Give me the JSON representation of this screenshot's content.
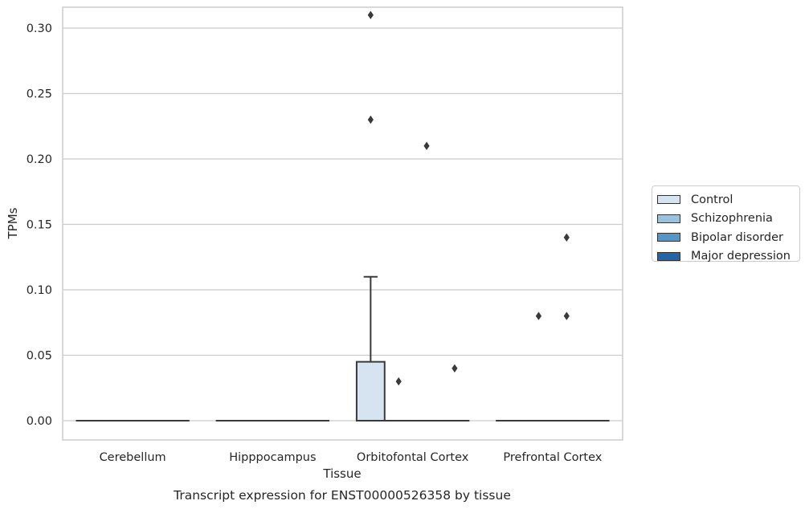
{
  "chart_data": {
    "type": "box",
    "xlabel": "Tissue",
    "ylabel": "TPMs",
    "caption": "Transcript expression for ENST00000526358 by tissue",
    "ylim": [
      -0.015,
      0.325
    ],
    "yticks": [
      "0.00",
      "0.05",
      "0.10",
      "0.15",
      "0.20",
      "0.25",
      "0.30"
    ],
    "grid": true,
    "legend_position": "outside-right",
    "categories": [
      "Cerebellum",
      "Hipppocampus",
      "Orbitofontal Cortex",
      "Prefrontal Cortex"
    ],
    "series": [
      {
        "name": "Control",
        "color": "#d6e4f2",
        "boxes": [
          {
            "q1": 0,
            "median": 0,
            "q3": 0,
            "whisker_low": 0,
            "whisker_high": 0,
            "outliers": []
          },
          {
            "q1": 0,
            "median": 0,
            "q3": 0,
            "whisker_low": 0,
            "whisker_high": 0,
            "outliers": []
          },
          {
            "q1": 0,
            "median": 0,
            "q3": 0.045,
            "whisker_low": 0,
            "whisker_high": 0.11,
            "outliers": [
              0.23,
              0.31
            ]
          },
          {
            "q1": 0,
            "median": 0,
            "q3": 0,
            "whisker_low": 0,
            "whisker_high": 0,
            "outliers": []
          }
        ]
      },
      {
        "name": "Schizophrenia",
        "color": "#9ac2dc",
        "boxes": [
          {
            "q1": 0,
            "median": 0,
            "q3": 0,
            "whisker_low": 0,
            "whisker_high": 0,
            "outliers": []
          },
          {
            "q1": 0,
            "median": 0,
            "q3": 0,
            "whisker_low": 0,
            "whisker_high": 0,
            "outliers": []
          },
          {
            "q1": 0,
            "median": 0,
            "q3": 0,
            "whisker_low": 0,
            "whisker_high": 0,
            "outliers": [
              0.03
            ]
          },
          {
            "q1": 0,
            "median": 0,
            "q3": 0,
            "whisker_low": 0,
            "whisker_high": 0,
            "outliers": [
              0.08
            ]
          }
        ]
      },
      {
        "name": "Bipolar disorder",
        "color": "#5596c6",
        "boxes": [
          {
            "q1": 0,
            "median": 0,
            "q3": 0,
            "whisker_low": 0,
            "whisker_high": 0,
            "outliers": []
          },
          {
            "q1": 0,
            "median": 0,
            "q3": 0,
            "whisker_low": 0,
            "whisker_high": 0,
            "outliers": []
          },
          {
            "q1": 0,
            "median": 0,
            "q3": 0,
            "whisker_low": 0,
            "whisker_high": 0,
            "outliers": [
              0.21
            ]
          },
          {
            "q1": 0,
            "median": 0,
            "q3": 0,
            "whisker_low": 0,
            "whisker_high": 0,
            "outliers": [
              0.08,
              0.14
            ]
          }
        ]
      },
      {
        "name": "Major depression",
        "color": "#2565a6",
        "boxes": [
          {
            "q1": 0,
            "median": 0,
            "q3": 0,
            "whisker_low": 0,
            "whisker_high": 0,
            "outliers": []
          },
          {
            "q1": 0,
            "median": 0,
            "q3": 0,
            "whisker_low": 0,
            "whisker_high": 0,
            "outliers": []
          },
          {
            "q1": 0,
            "median": 0,
            "q3": 0,
            "whisker_low": 0,
            "whisker_high": 0,
            "outliers": [
              0.04
            ]
          },
          {
            "q1": 0,
            "median": 0,
            "q3": 0,
            "whisker_low": 0,
            "whisker_high": 0,
            "outliers": []
          }
        ]
      }
    ]
  }
}
